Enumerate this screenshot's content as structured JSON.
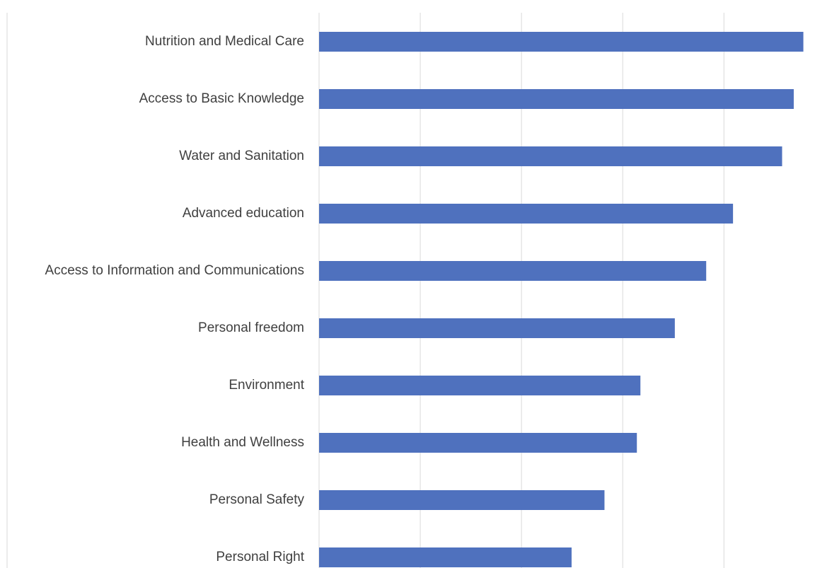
{
  "chart_data": {
    "type": "bar",
    "orientation": "horizontal",
    "categories": [
      "Nutrition and Medical Care",
      "Access to Basic Knowledge",
      "Water and Sanitation",
      "Advanced education",
      "Access to Information and Communications",
      "Personal freedom",
      "Environment",
      "Health and Wellness",
      "Personal Safety",
      "Personal Right"
    ],
    "values": [
      95.7,
      93.8,
      91.5,
      81.8,
      76.5,
      70.3,
      63.5,
      62.8,
      56.4,
      49.9
    ],
    "color": "#4f71be",
    "xlim": [
      0,
      98
    ],
    "xticks": [
      0,
      20,
      40,
      60,
      80
    ],
    "grid": true
  }
}
